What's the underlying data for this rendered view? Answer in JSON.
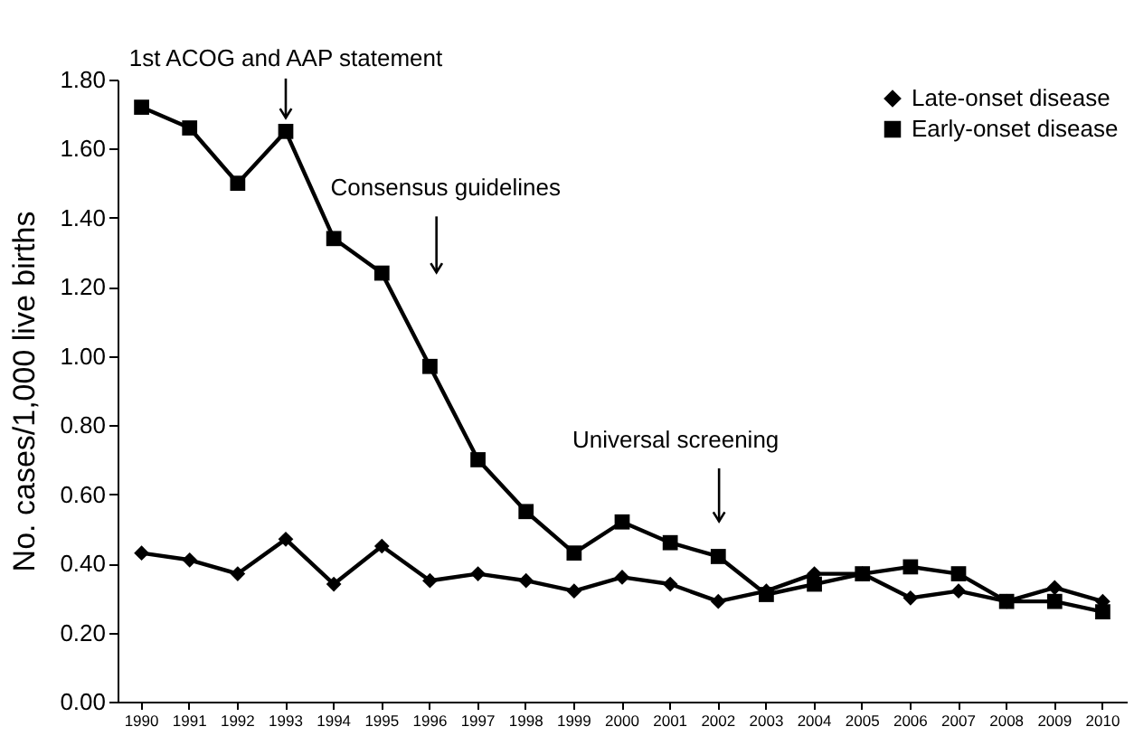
{
  "chart_data": {
    "type": "line",
    "ylabel": "No. cases/1,000 live births",
    "categories": [
      "1990",
      "1991",
      "1992",
      "1993",
      "1994",
      "1995",
      "1996",
      "1997",
      "1998",
      "1999",
      "2000",
      "2001",
      "2002",
      "2003",
      "2004",
      "2005",
      "2006",
      "2007",
      "2008",
      "2009",
      "2010"
    ],
    "series": [
      {
        "name": "Late-onset disease",
        "color": "#000000",
        "marker": "diamond",
        "values": [
          0.43,
          0.41,
          0.37,
          0.47,
          0.34,
          0.45,
          0.35,
          0.37,
          0.35,
          0.32,
          0.36,
          0.34,
          0.29,
          0.32,
          0.37,
          0.37,
          0.3,
          0.32,
          0.29,
          0.33,
          0.29
        ]
      },
      {
        "name": "Early-onset disease",
        "color": "#000000",
        "marker": "square",
        "values": [
          1.72,
          1.66,
          1.5,
          1.65,
          1.34,
          1.24,
          0.97,
          0.7,
          0.55,
          0.43,
          0.52,
          0.46,
          0.42,
          0.31,
          0.34,
          0.37,
          0.39,
          0.37,
          0.29,
          0.29,
          0.26
        ]
      }
    ],
    "ylim": [
      0,
      1.8
    ],
    "yticks": [
      {
        "value": 0,
        "label": "0.00"
      },
      {
        "value": 0.2,
        "label": "0.20"
      },
      {
        "value": 0.4,
        "label": "0.40"
      },
      {
        "value": 0.6,
        "label": "0.60"
      },
      {
        "value": 0.8,
        "label": "0.80"
      },
      {
        "value": 1,
        "label": "1.00"
      },
      {
        "value": 1.2,
        "label": "1.20"
      },
      {
        "value": 1.4,
        "label": "1.40"
      },
      {
        "value": 1.6,
        "label": "1.60"
      },
      {
        "value": 1.8,
        "label": "1.80"
      }
    ],
    "annotations": [
      {
        "text": "1st ACOG and AAP statement",
        "x": "1993",
        "y": 1.65
      },
      "Consensus guidelines",
      "Universal screening"
    ],
    "legend": "top right",
    "grid": false
  }
}
